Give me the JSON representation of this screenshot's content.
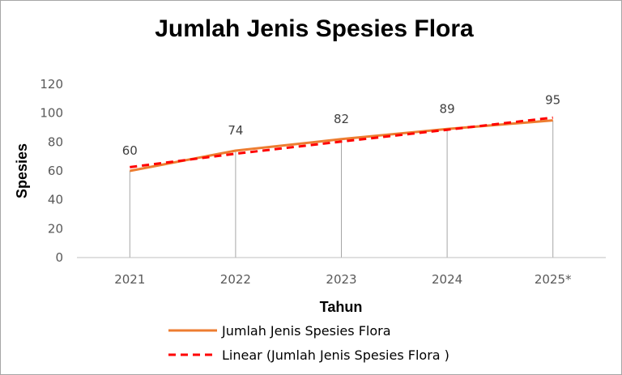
{
  "chart_data": {
    "type": "line",
    "title": "Jumlah Jenis Spesies Flora",
    "xlabel": "Tahun",
    "ylabel": "Spesies",
    "categories": [
      "2021",
      "2022",
      "2023",
      "2024",
      "2025*"
    ],
    "ylim": [
      0,
      120
    ],
    "yticks": [
      0,
      20,
      40,
      60,
      80,
      100,
      120
    ],
    "grid": false,
    "drop_lines": true,
    "legend_position": "bottom",
    "series": [
      {
        "name": "Jumlah Jenis Spesies Flora",
        "values": [
          60,
          74,
          82,
          89,
          95
        ],
        "color": "#ed7d31",
        "style": "solid",
        "data_labels": [
          "60",
          "74",
          "82",
          "89",
          "95"
        ]
      },
      {
        "name": "Linear (Jumlah Jenis Spesies Flora )",
        "values": [
          62.6,
          71.9,
          80.3,
          88.5,
          96.9
        ],
        "color": "#ff0000",
        "style": "dashed"
      }
    ]
  }
}
